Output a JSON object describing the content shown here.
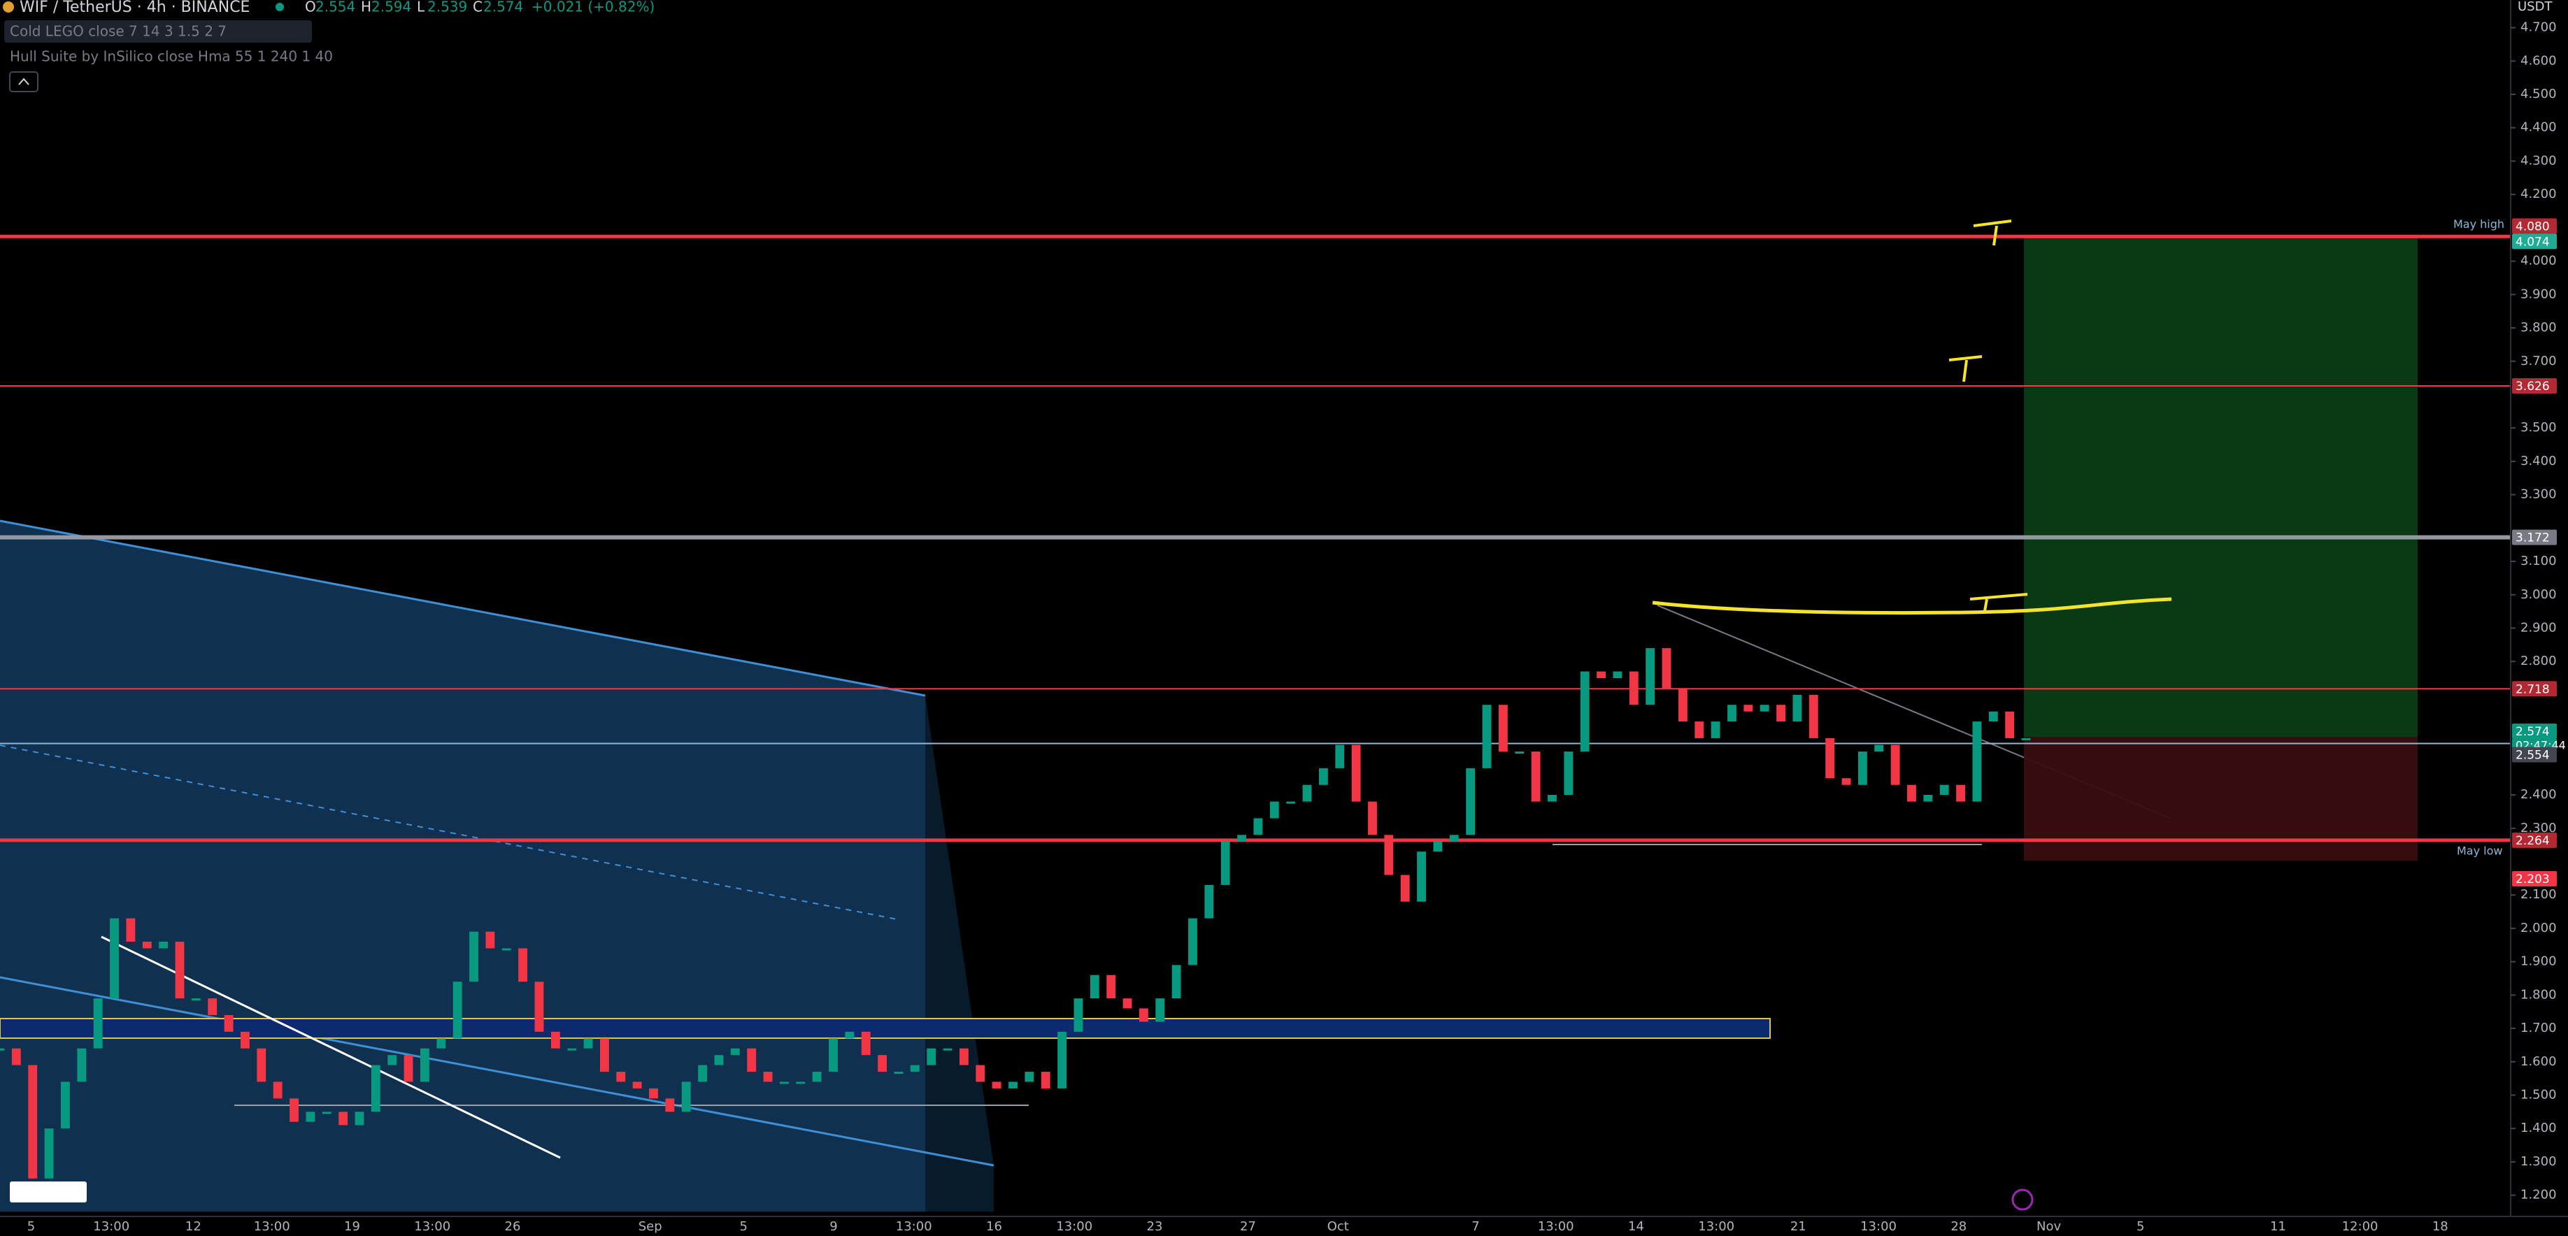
{
  "header": {
    "symbol": "WIF / TetherUS · 4h · BINANCE",
    "ohlc": [
      {
        "key": "O",
        "val": "2.554"
      },
      {
        "key": "H",
        "val": "2.594"
      },
      {
        "key": "L",
        "val": "2.539"
      },
      {
        "key": "C",
        "val": "2.574"
      }
    ],
    "change": "+0.021 (+0.82%)"
  },
  "indicators": [
    "Cold LEGO close 7 14 3 1.5 2 7",
    "Hull Suite by InSilico close Hma 55 1 240 1 40"
  ],
  "currency": "USDT",
  "chart_data": {
    "type": "candlestick",
    "closes": [
      1.64,
      1.59,
      1.25,
      1.4,
      1.54,
      1.64,
      1.79,
      2.03,
      1.96,
      1.94,
      1.96,
      1.79,
      1.79,
      1.74,
      1.69,
      1.64,
      1.54,
      1.49,
      1.42,
      1.45,
      1.45,
      1.41,
      1.45,
      1.59,
      1.62,
      1.54,
      1.64,
      1.67,
      1.84,
      1.99,
      1.94,
      1.94,
      1.84,
      1.69,
      1.64,
      1.64,
      1.67,
      1.57,
      1.54,
      1.52,
      1.49,
      1.45,
      1.54,
      1.59,
      1.62,
      1.64,
      1.57,
      1.54,
      1.54,
      1.54,
      1.57,
      1.67,
      1.69,
      1.62,
      1.57,
      1.57,
      1.59,
      1.64,
      1.64,
      1.59,
      1.54,
      1.52,
      1.54,
      1.57,
      1.52,
      1.69,
      1.79,
      1.86,
      1.79,
      1.76,
      1.72,
      1.79,
      1.89,
      2.03,
      2.13,
      2.26,
      2.28,
      2.33,
      2.38,
      2.38,
      2.43,
      2.48,
      2.55,
      2.38,
      2.28,
      2.16,
      2.08,
      2.23,
      2.26,
      2.28,
      2.48,
      2.67,
      2.53,
      2.53,
      2.38,
      2.4,
      2.53,
      2.77,
      2.75,
      2.77,
      2.67,
      2.84,
      2.72,
      2.62,
      2.57,
      2.62,
      2.67,
      2.65,
      2.67,
      2.62,
      2.7,
      2.57,
      2.45,
      2.43,
      2.53,
      2.55,
      2.43,
      2.38,
      2.4,
      2.43,
      2.38,
      2.62,
      2.65,
      2.57,
      2.57
    ],
    "up_color": "#089981",
    "down_color": "#f23645",
    "ylim": [
      1.151,
      4.783
    ],
    "yticks": [
      {
        "value": 1.2,
        "label": "1.200"
      },
      {
        "value": 1.3,
        "label": "1.300"
      },
      {
        "value": 1.4,
        "label": "1.400"
      },
      {
        "value": 1.5,
        "label": "1.500"
      },
      {
        "value": 1.6,
        "label": "1.600"
      },
      {
        "value": 1.7,
        "label": "1.700"
      },
      {
        "value": 1.8,
        "label": "1.800"
      },
      {
        "value": 1.9,
        "label": "1.900"
      },
      {
        "value": 2,
        "label": "2.000"
      },
      {
        "value": 2.1,
        "label": "2.100"
      },
      {
        "value": 2.3,
        "label": "2.300"
      },
      {
        "value": 2.4,
        "label": "2.400"
      },
      {
        "value": 2.8,
        "label": "2.800"
      },
      {
        "value": 2.9,
        "label": "2.900"
      },
      {
        "value": 3,
        "label": "3.000"
      },
      {
        "value": 3.1,
        "label": "3.100"
      },
      {
        "value": 3.3,
        "label": "3.300"
      },
      {
        "value": 3.4,
        "label": "3.400"
      },
      {
        "value": 3.5,
        "label": "3.500"
      },
      {
        "value": 3.7,
        "label": "3.700"
      },
      {
        "value": 3.8,
        "label": "3.800"
      },
      {
        "value": 3.9,
        "label": "3.900"
      },
      {
        "value": 4,
        "label": "4.000"
      },
      {
        "value": 4.2,
        "label": "4.200"
      },
      {
        "value": 4.3,
        "label": "4.300"
      },
      {
        "value": 4.4,
        "label": "4.400"
      },
      {
        "value": 4.5,
        "label": "4.500"
      },
      {
        "value": 4.6,
        "label": "4.600"
      },
      {
        "value": 4.7,
        "label": "4.700"
      }
    ],
    "x_labels": [
      "5",
      "13:00",
      "12",
      "13:00",
      "19",
      "13:00",
      "26",
      "Sep",
      "5",
      "9",
      "13:00",
      "16",
      "13:00",
      "23",
      "27",
      "Oct",
      "7",
      "13:00",
      "14",
      "13:00",
      "21",
      "13:00",
      "28",
      "Nov",
      "5",
      "11",
      "12:00",
      "18"
    ],
    "levels": [
      {
        "value": 4.074,
        "color": "#f23645"
      },
      {
        "value": 3.626,
        "color": "#f23645"
      },
      {
        "value": 3.172,
        "color": "#9598a1"
      },
      {
        "value": 2.718,
        "color": "#f23645"
      },
      {
        "value": 2.554,
        "color": "#8fb8d8"
      },
      {
        "value": 2.264,
        "color": "#f23645"
      }
    ],
    "price_labels": [
      {
        "value": 4.08,
        "label": "4.080",
        "color": "#b22833"
      },
      {
        "value": 4.074,
        "label": "4.074",
        "color": "#22ab94"
      },
      {
        "value": 3.626,
        "label": "3.626",
        "color": "#b22833"
      },
      {
        "value": 3.172,
        "label": "3.172",
        "color": "#787b86"
      },
      {
        "value": 2.718,
        "label": "2.718",
        "color": "#b22833"
      },
      {
        "value": 2.574,
        "label": "2.574",
        "color": "#089981"
      },
      {
        "value": 2.554,
        "label": "2.554",
        "color": "#434651"
      },
      {
        "value": 2.264,
        "label": "2.264",
        "color": "#b22833"
      },
      {
        "value": 2.203,
        "label": "2.203",
        "color": "#f23645"
      }
    ],
    "countdown": "02:47:44",
    "annotations": [
      "May high",
      "May low"
    ]
  }
}
